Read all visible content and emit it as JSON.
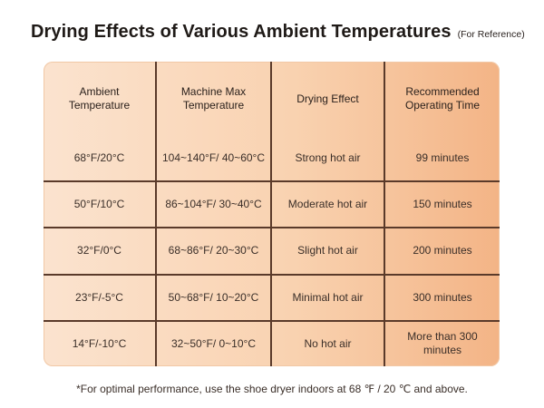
{
  "header": {
    "title": "Drying Effects of Various Ambient Temperatures",
    "subtitle": "(For Reference)"
  },
  "table": {
    "columns": [
      "Ambient Temperature",
      "Machine Max Temperature",
      "Drying Effect",
      "Recommended Operating Time"
    ],
    "rows": [
      [
        "68°F/20°C",
        "104~140°F/ 40~60°C",
        "Strong hot air",
        "99 minutes"
      ],
      [
        "50°F/10°C",
        "86~104°F/ 30~40°C",
        "Moderate hot air",
        "150 minutes"
      ],
      [
        "32°F/0°C",
        "68~86°F/ 20~30°C",
        "Slight hot air",
        "200 minutes"
      ],
      [
        "23°F/-5°C",
        "50~68°F/ 10~20°C",
        "Minimal hot air",
        "300 minutes"
      ],
      [
        "14°F/-10°C",
        "32~50°F/ 0~10°C",
        "No hot air",
        "More than 300 minutes"
      ]
    ]
  },
  "footnote": "*For optimal performance, use the shoe dryer indoors at 68 ℉ / 20 ℃ and above.",
  "colors": {
    "table_light": "#fbe3cf",
    "table_dark": "#f3b486",
    "grid_line": "#5a3a2a"
  }
}
